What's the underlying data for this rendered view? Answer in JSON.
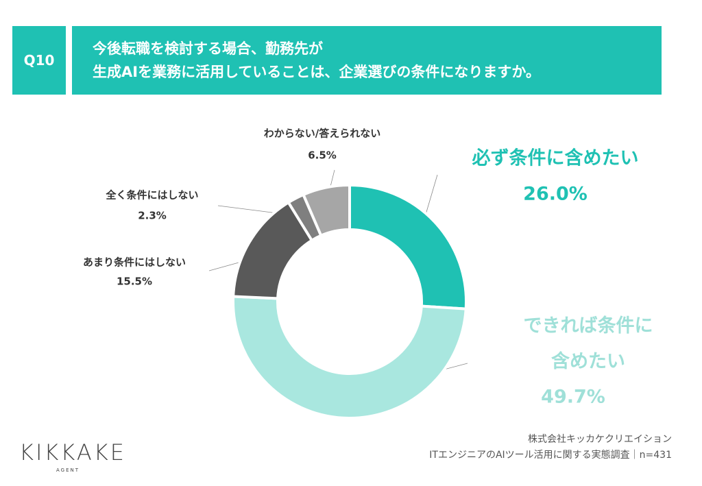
{
  "question_label": "Q10",
  "chart_data": {
    "type": "donut",
    "title": "今後転職を検討する場合、勤務先が\n生成AIを業務に活用していることは、企業選びの条件になりますか。",
    "categories": [
      "必ず条件に含めたい",
      "できれば条件に含めたい",
      "あまり条件にはしない",
      "全く条件にはしない",
      "わからない/答えられない"
    ],
    "values": [
      26.0,
      49.7,
      15.5,
      2.3,
      6.5
    ],
    "value_labels": [
      "26.0%",
      "49.7%",
      "15.5%",
      "2.3%",
      "6.5%"
    ],
    "colors": [
      "#1fc1b3",
      "#a9e7df",
      "#595959",
      "#7f7f7f",
      "#a6a6a6"
    ]
  },
  "source": [
    "株式会社キッカケクリエイション",
    "ITエンジニアのAIツール活用に関する実態調査｜n=431"
  ],
  "logo": {
    "name": "KIKKAKE",
    "sub": "AGENT"
  }
}
